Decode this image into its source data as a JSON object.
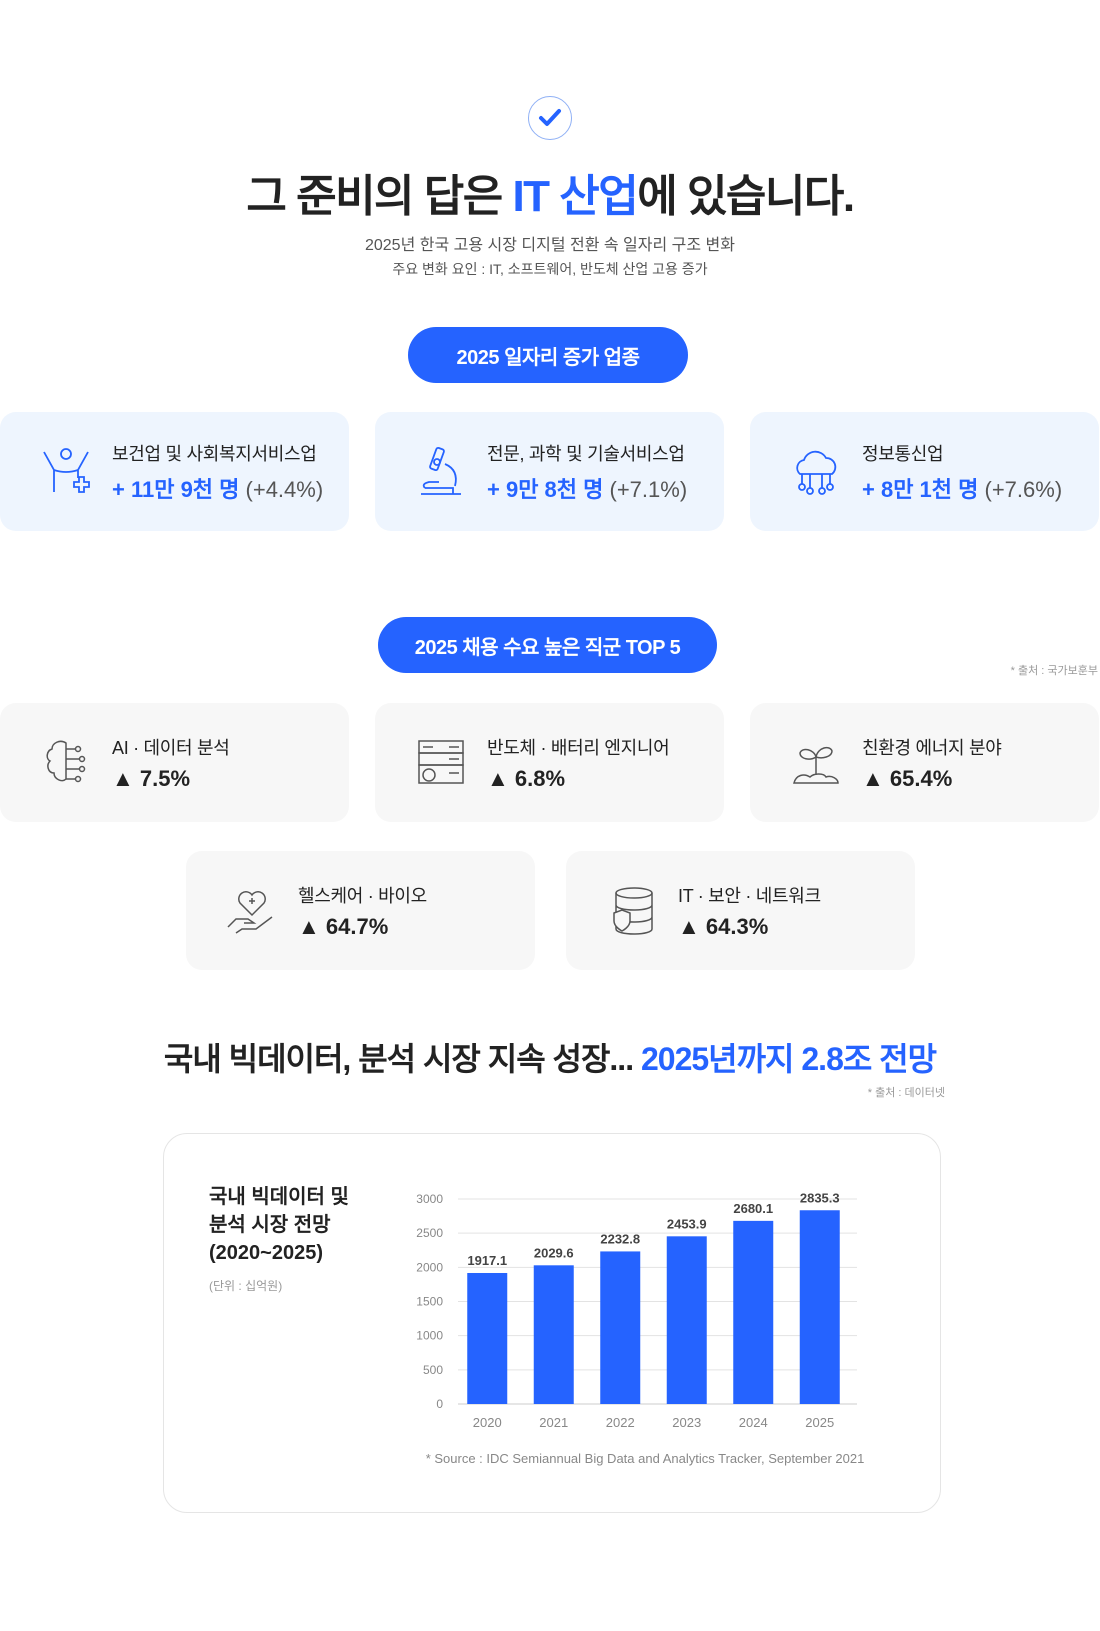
{
  "header": {
    "icon": "check-circle-icon",
    "title_pre": "그 준비의 답은 ",
    "title_hl": "IT 산업",
    "title_post": "에 있습니다.",
    "subtitle1": "2025년 한국 고용 시장 디지털 전환 속 일자리 구조 변화",
    "subtitle2": "주요 변화 요인 : IT, 소프트웨어, 반도체 산업 고용 증가"
  },
  "section1": {
    "pill": "2025 일자리 증가 업종",
    "cards": [
      {
        "icon": "person-health-icon",
        "label": "보건업 및 사회복지서비스업",
        "value": "+ 11만 9천 명",
        "pct": " (+4.4%)"
      },
      {
        "icon": "microscope-icon",
        "label": "전문, 과학 및 기술서비스업",
        "value": "+ 9만 8천 명",
        "pct": " (+7.1%)"
      },
      {
        "icon": "cloud-network-icon",
        "label": "정보통신업",
        "value": "+ 8만 1천 명",
        "pct": " (+7.6%)"
      }
    ]
  },
  "section2": {
    "pill": "2025 채용 수요 높은 직군 TOP 5",
    "source": "* 출처 : 국가보훈부",
    "cards": [
      {
        "icon": "brain-circuit-icon",
        "label": "AI · 데이터 분석",
        "value": "▲ 7.5%"
      },
      {
        "icon": "server-gear-icon",
        "label": "반도체 · 배터리 엔지니어",
        "value": "▲ 6.8%"
      },
      {
        "icon": "sprout-icon",
        "label": "친환경 에너지 분야",
        "value": "▲ 65.4%"
      },
      {
        "icon": "heart-hand-icon",
        "label": "헬스케어 · 바이오",
        "value": "▲ 64.7%"
      },
      {
        "icon": "database-shield-icon",
        "label": "IT · 보안 · 네트워크",
        "value": "▲ 64.3%"
      }
    ]
  },
  "section3": {
    "title_pre": "국내 빅데이터, 분석 시장 지속 성장... ",
    "title_hl": "2025년까지 2.8조 전망",
    "source": "* 출처 : 데이터넷"
  },
  "chart_data": {
    "type": "bar",
    "title_lines": [
      "국내 빅데이터 및",
      "분석 시장 전망",
      "(2020~2025)"
    ],
    "unit": "(단위 : 십억원)",
    "categories": [
      "2020",
      "2021",
      "2022",
      "2023",
      "2024",
      "2025"
    ],
    "values": [
      1917.1,
      2029.6,
      2232.8,
      2453.9,
      2680.1,
      2835.3
    ],
    "labels": [
      "1917.1",
      "2029.6",
      "2232.8",
      "2453.9",
      "2680.1",
      "2835.3"
    ],
    "yticks": [
      "0",
      "500",
      "1000",
      "1500",
      "2000",
      "2500",
      "3000"
    ],
    "ylim": [
      0,
      3000
    ],
    "grid": true,
    "bar_color": "#2563ff",
    "source": "* Source : IDC Semiannual Big Data and Analytics Tracker, September 2021"
  },
  "colors": {
    "accent": "#2563ff",
    "card_blue": "#eef5fe",
    "card_gray": "#f7f7f7"
  }
}
